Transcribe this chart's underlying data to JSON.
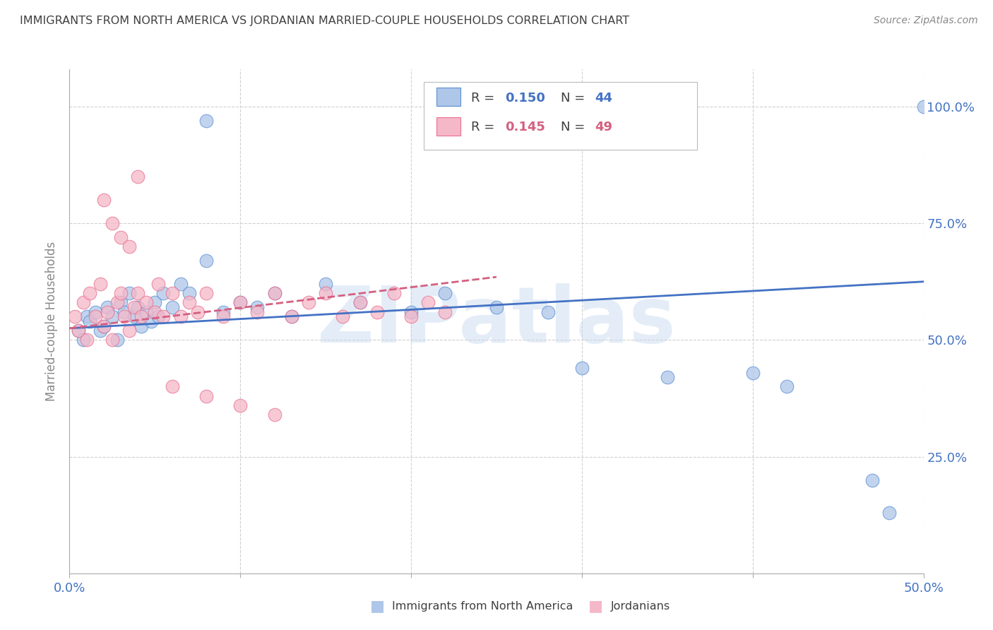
{
  "title": "IMMIGRANTS FROM NORTH AMERICA VS JORDANIAN MARRIED-COUPLE HOUSEHOLDS CORRELATION CHART",
  "source": "Source: ZipAtlas.com",
  "ylabel": "Married-couple Households",
  "xlim": [
    0.0,
    0.5
  ],
  "ylim": [
    0.0,
    1.08
  ],
  "blue_R": 0.15,
  "blue_N": 44,
  "pink_R": 0.145,
  "pink_N": 49,
  "blue_color": "#aec6e8",
  "pink_color": "#f5b8c8",
  "blue_edge_color": "#5b8fd4",
  "pink_edge_color": "#e87090",
  "blue_line_color": "#4472c4",
  "pink_line_color": "#d46080",
  "grid_color": "#d0d0d0",
  "background_color": "#ffffff",
  "title_color": "#404040",
  "axis_label_color": "#4472c4",
  "watermark": "ZIPatlas",
  "blue_trend_x": [
    0.0,
    0.5
  ],
  "blue_trend_y": [
    0.525,
    0.625
  ],
  "pink_trend_x": [
    0.0,
    0.25
  ],
  "pink_trend_y": [
    0.525,
    0.635
  ],
  "blue_scatter_x": [
    0.005,
    0.008,
    0.01,
    0.012,
    0.015,
    0.018,
    0.02,
    0.022,
    0.025,
    0.028,
    0.03,
    0.032,
    0.035,
    0.038,
    0.04,
    0.042,
    0.045,
    0.048,
    0.05,
    0.052,
    0.055,
    0.06,
    0.065,
    0.07,
    0.08,
    0.09,
    0.1,
    0.11,
    0.12,
    0.13,
    0.15,
    0.17,
    0.2,
    0.22,
    0.25,
    0.28,
    0.3,
    0.35,
    0.08,
    0.47,
    0.48,
    0.4,
    0.42,
    0.5
  ],
  "blue_scatter_y": [
    0.52,
    0.5,
    0.55,
    0.54,
    0.56,
    0.52,
    0.53,
    0.57,
    0.55,
    0.5,
    0.58,
    0.56,
    0.6,
    0.55,
    0.57,
    0.53,
    0.56,
    0.54,
    0.58,
    0.55,
    0.6,
    0.57,
    0.62,
    0.6,
    0.97,
    0.56,
    0.58,
    0.57,
    0.6,
    0.55,
    0.62,
    0.58,
    0.56,
    0.6,
    0.57,
    0.56,
    0.44,
    0.42,
    0.67,
    0.2,
    0.13,
    0.43,
    0.4,
    1.0
  ],
  "pink_scatter_x": [
    0.003,
    0.005,
    0.008,
    0.01,
    0.012,
    0.015,
    0.018,
    0.02,
    0.022,
    0.025,
    0.028,
    0.03,
    0.032,
    0.035,
    0.038,
    0.04,
    0.042,
    0.045,
    0.05,
    0.052,
    0.055,
    0.06,
    0.065,
    0.07,
    0.075,
    0.08,
    0.09,
    0.1,
    0.11,
    0.12,
    0.13,
    0.14,
    0.15,
    0.16,
    0.17,
    0.18,
    0.19,
    0.2,
    0.21,
    0.22,
    0.04,
    0.02,
    0.025,
    0.03,
    0.035,
    0.06,
    0.08,
    0.1,
    0.12
  ],
  "pink_scatter_y": [
    0.55,
    0.52,
    0.58,
    0.5,
    0.6,
    0.55,
    0.62,
    0.53,
    0.56,
    0.5,
    0.58,
    0.6,
    0.55,
    0.52,
    0.57,
    0.6,
    0.55,
    0.58,
    0.56,
    0.62,
    0.55,
    0.6,
    0.55,
    0.58,
    0.56,
    0.6,
    0.55,
    0.58,
    0.56,
    0.6,
    0.55,
    0.58,
    0.6,
    0.55,
    0.58,
    0.56,
    0.6,
    0.55,
    0.58,
    0.56,
    0.85,
    0.8,
    0.75,
    0.72,
    0.7,
    0.4,
    0.38,
    0.36,
    0.34
  ]
}
